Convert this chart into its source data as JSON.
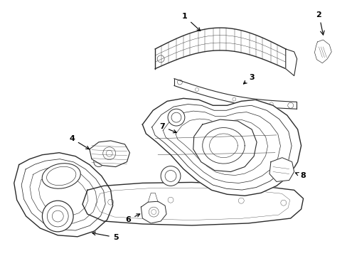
{
  "background_color": "#ffffff",
  "line_color": "#2a2a2a",
  "label_color": "#000000",
  "lw_main": 1.0,
  "lw_thin": 0.5,
  "figsize": [
    4.89,
    3.6
  ],
  "dpi": 100
}
